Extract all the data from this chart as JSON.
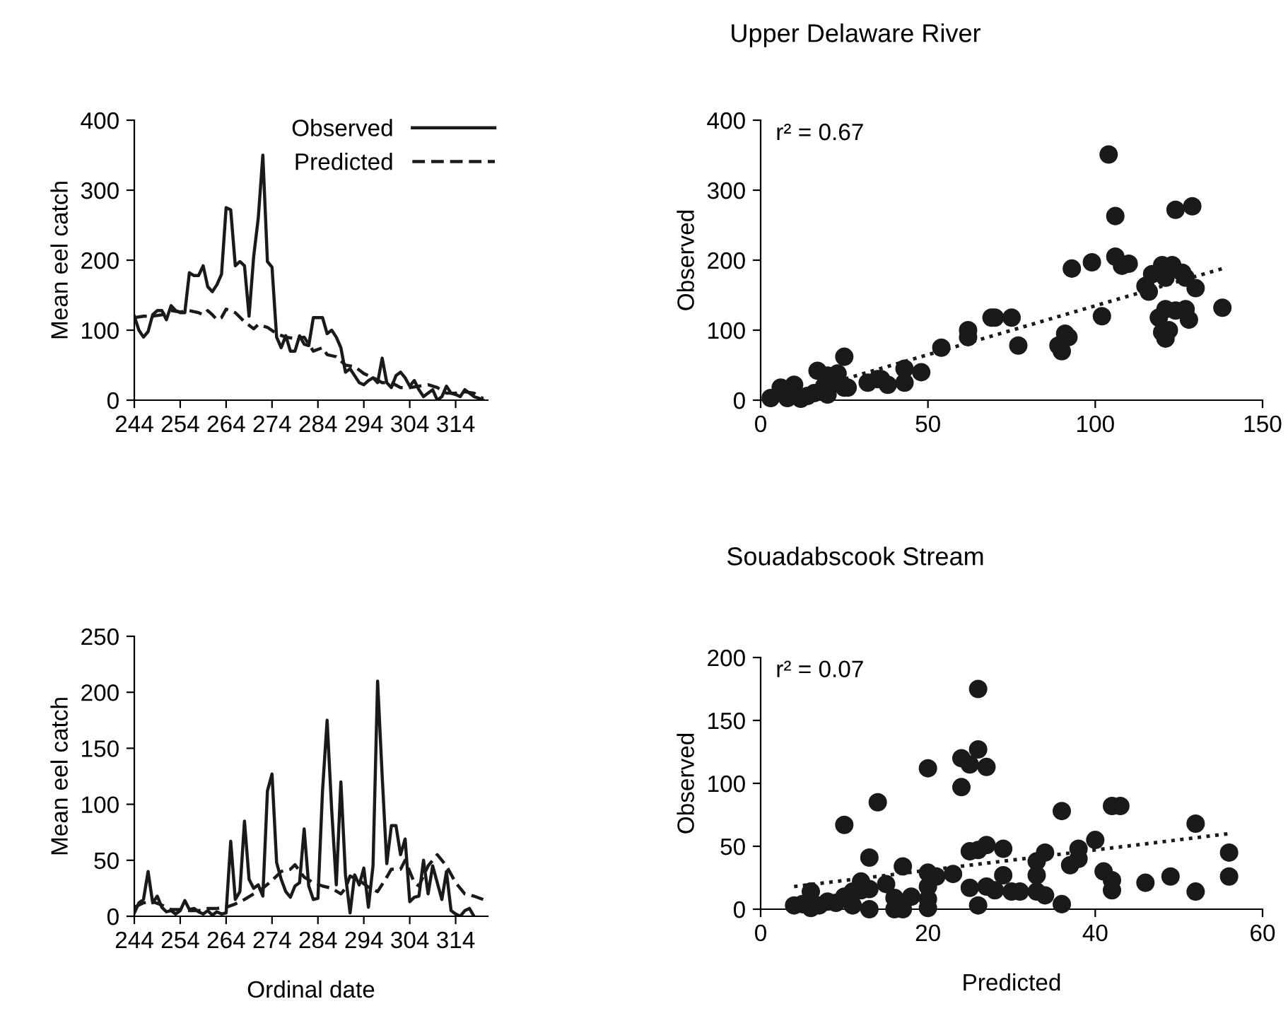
{
  "chart_data": [
    {
      "type": "line",
      "ylabel": "Mean eel catch",
      "xlim": [
        244,
        321
      ],
      "xticks": [
        244,
        254,
        264,
        274,
        284,
        294,
        304,
        314
      ],
      "ylim": [
        0,
        400
      ],
      "yticks": [
        0,
        100,
        200,
        300,
        400
      ],
      "grid": false,
      "legend": "top right",
      "series": [
        {
          "name": "Observed",
          "color": "#1a1a1a",
          "line_style": "solid",
          "x": [
            244,
            245,
            246,
            247,
            248,
            249,
            250,
            251,
            252,
            253,
            254,
            255,
            256,
            257,
            258,
            259,
            260,
            261,
            262,
            263,
            264,
            265,
            266,
            267,
            268,
            269,
            270,
            271,
            272,
            273,
            274,
            275,
            276,
            277,
            278,
            279,
            280,
            281,
            282,
            283,
            284,
            285,
            286,
            287,
            288,
            289,
            290,
            291,
            292,
            293,
            294,
            295,
            296,
            297,
            298,
            299,
            300,
            301,
            302,
            303,
            304,
            305,
            306,
            307,
            308,
            309,
            310,
            311,
            312,
            313,
            314,
            315,
            316,
            317,
            318,
            319,
            320
          ],
          "values": [
            120,
            100,
            90,
            98,
            122,
            128,
            128,
            115,
            135,
            128,
            125,
            125,
            182,
            178,
            178,
            192,
            162,
            155,
            165,
            180,
            275,
            272,
            192,
            198,
            192,
            120,
            205,
            260,
            350,
            198,
            190,
            90,
            75,
            92,
            70,
            70,
            92,
            80,
            78,
            118,
            118,
            118,
            95,
            100,
            90,
            75,
            40,
            45,
            35,
            25,
            22,
            28,
            32,
            25,
            60,
            25,
            18,
            35,
            40,
            32,
            20,
            28,
            15,
            5,
            10,
            15,
            0,
            5,
            20,
            10,
            8,
            5,
            15,
            10,
            5,
            3,
            0
          ]
        },
        {
          "name": "Predicted",
          "color": "#1a1a1a",
          "line_style": "dashed",
          "x": [
            244,
            246,
            248,
            250,
            252,
            254,
            256,
            258,
            259,
            260,
            261,
            262,
            263,
            264,
            266,
            268,
            270,
            271,
            273,
            275,
            277,
            279,
            281,
            283,
            285,
            286,
            288,
            290,
            292,
            294,
            296,
            298,
            300,
            302,
            304,
            306,
            308,
            310,
            312,
            314,
            316,
            318,
            320
          ],
          "values": [
            118,
            120,
            120,
            122,
            128,
            126,
            128,
            125,
            122,
            128,
            122,
            115,
            118,
            130,
            125,
            112,
            102,
            108,
            104,
            95,
            90,
            88,
            90,
            70,
            75,
            65,
            62,
            50,
            48,
            38,
            32,
            25,
            25,
            18,
            18,
            20,
            22,
            18,
            10,
            10,
            12,
            10,
            2
          ]
        }
      ]
    },
    {
      "type": "scatter",
      "title": "Upper Delaware River",
      "ylabel": "Observed",
      "xlim": [
        0,
        150
      ],
      "xticks": [
        0,
        50,
        100,
        150
      ],
      "ylim": [
        0,
        400
      ],
      "yticks": [
        0,
        100,
        200,
        300,
        400
      ],
      "grid": false,
      "annotations": [
        "r² = 0.67"
      ],
      "series": [
        {
          "color": "#1a1a1a",
          "marker": "circle",
          "x": [
            104,
            106,
            106,
            110,
            108,
            93,
            99,
            124,
            129,
            120,
            123,
            117,
            121,
            126,
            127,
            130,
            115,
            116,
            102,
            119,
            121,
            124,
            127,
            128,
            120,
            121,
            122,
            138,
            75,
            69,
            70,
            77,
            62,
            62,
            54,
            89,
            90,
            91,
            92,
            48,
            43,
            43,
            38,
            35,
            32,
            36,
            25,
            23,
            17,
            20,
            22,
            25,
            19,
            16,
            10,
            6,
            3,
            8,
            12,
            14,
            20,
            26
          ],
          "values": [
            351,
            263,
            205,
            195,
            192,
            188,
            197,
            272,
            277,
            193,
            193,
            180,
            175,
            182,
            175,
            160,
            163,
            155,
            120,
            118,
            130,
            128,
            130,
            115,
            97,
            88,
            100,
            132,
            118,
            118,
            118,
            78,
            100,
            90,
            75,
            78,
            70,
            95,
            90,
            40,
            45,
            25,
            22,
            30,
            25,
            30,
            62,
            38,
            42,
            35,
            25,
            18,
            20,
            10,
            22,
            18,
            3,
            3,
            2,
            6,
            8,
            18
          ]
        },
        {
          "type": "line",
          "color": "#1a1a1a",
          "line_style": "dotted",
          "x": [
            5,
            138
          ],
          "values": [
            2,
            188
          ]
        }
      ]
    },
    {
      "type": "line",
      "xlabel": "Ordinal date",
      "ylabel": "Mean eel catch",
      "xlim": [
        244,
        321
      ],
      "xticks": [
        244,
        254,
        264,
        274,
        284,
        294,
        304,
        314
      ],
      "ylim": [
        0,
        250
      ],
      "yticks": [
        0,
        50,
        100,
        150,
        200,
        250
      ],
      "grid": false,
      "legend": false,
      "series": [
        {
          "color": "#1a1a1a",
          "line_style": "solid",
          "x": [
            244,
            245,
            246,
            247,
            248,
            249,
            250,
            251,
            252,
            253,
            254,
            255,
            256,
            257,
            258,
            259,
            260,
            261,
            262,
            263,
            264,
            265,
            266,
            267,
            268,
            269,
            270,
            271,
            272,
            273,
            274,
            275,
            276,
            277,
            278,
            279,
            280,
            281,
            282,
            283,
            284,
            285,
            286,
            287,
            288,
            289,
            290,
            291,
            292,
            293,
            294,
            295,
            296,
            297,
            298,
            299,
            300,
            301,
            302,
            303,
            304,
            305,
            306,
            307,
            308,
            309,
            310,
            311,
            312,
            313,
            314,
            315,
            316,
            317,
            318
          ],
          "values": [
            3,
            12,
            15,
            40,
            12,
            18,
            8,
            4,
            5,
            2,
            5,
            14,
            6,
            7,
            4,
            2,
            5,
            1,
            4,
            2,
            3,
            67,
            15,
            22,
            85,
            33,
            25,
            28,
            18,
            112,
            127,
            48,
            33,
            22,
            17,
            27,
            30,
            78,
            27,
            15,
            16,
            112,
            175,
            95,
            28,
            120,
            37,
            3,
            37,
            28,
            43,
            8,
            45,
            210,
            125,
            47,
            81,
            81,
            55,
            69,
            13,
            17,
            18,
            50,
            20,
            45,
            30,
            15,
            40,
            5,
            2,
            0,
            5,
            7,
            0
          ]
        },
        {
          "color": "#1a1a1a",
          "line_style": "dashed",
          "x": [
            244,
            246,
            248,
            250,
            252,
            254,
            256,
            258,
            260,
            262,
            264,
            266,
            268,
            270,
            272,
            274,
            276,
            278,
            279,
            281,
            283,
            285,
            287,
            289,
            290,
            291,
            293,
            295,
            297,
            299,
            300,
            302,
            303,
            305,
            306,
            308,
            310,
            312,
            314,
            316,
            318,
            320
          ],
          "values": [
            8,
            12,
            13,
            10,
            6,
            6,
            5,
            5,
            7,
            7,
            8,
            11,
            15,
            20,
            25,
            32,
            40,
            42,
            46,
            35,
            30,
            27,
            25,
            20,
            25,
            36,
            32,
            26,
            22,
            35,
            42,
            42,
            50,
            30,
            27,
            45,
            55,
            45,
            30,
            20,
            18,
            15
          ]
        }
      ]
    },
    {
      "type": "scatter",
      "title": "Souadabscook Stream",
      "xlabel": "Predicted",
      "ylabel": "Observed",
      "xlim": [
        0,
        60
      ],
      "xticks": [
        0,
        20,
        40,
        60
      ],
      "ylim": [
        0,
        200
      ],
      "yticks": [
        0,
        50,
        100,
        150,
        200
      ],
      "grid": false,
      "annotations": [
        "r² = 0.07"
      ],
      "series": [
        {
          "color": "#1a1a1a",
          "marker": "circle",
          "x": [
            26,
            26,
            24,
            25,
            27,
            20,
            24,
            14,
            10,
            36,
            42,
            43,
            52,
            40,
            38,
            38,
            37,
            56,
            56,
            34,
            33,
            33,
            29,
            27,
            26,
            25,
            13,
            17,
            20,
            21,
            23,
            29,
            41,
            42,
            42,
            46,
            49,
            52,
            25,
            27,
            28,
            30,
            31,
            33,
            34,
            36,
            26,
            20,
            20,
            20,
            15,
            16,
            18,
            12,
            12,
            13,
            11,
            10,
            9,
            11,
            13,
            16,
            17,
            8,
            7,
            6,
            5,
            4,
            6
          ],
          "values": [
            175,
            127,
            120,
            115,
            113,
            112,
            97,
            85,
            67,
            78,
            82,
            82,
            68,
            55,
            48,
            40,
            35,
            45,
            26,
            45,
            38,
            27,
            48,
            51,
            47,
            46,
            41,
            34,
            29,
            26,
            28,
            27,
            30,
            23,
            15,
            21,
            26,
            14,
            17,
            18,
            15,
            14,
            14,
            14,
            11,
            4,
            3,
            18,
            8,
            1,
            20,
            9,
            10,
            22,
            15,
            16,
            14,
            10,
            5,
            3,
            0,
            0,
            0,
            6,
            3,
            1,
            4,
            3,
            14
          ]
        },
        {
          "type": "line",
          "color": "#1a1a1a",
          "line_style": "dotted",
          "x": [
            4,
            56
          ],
          "values": [
            18,
            60
          ]
        }
      ]
    }
  ]
}
